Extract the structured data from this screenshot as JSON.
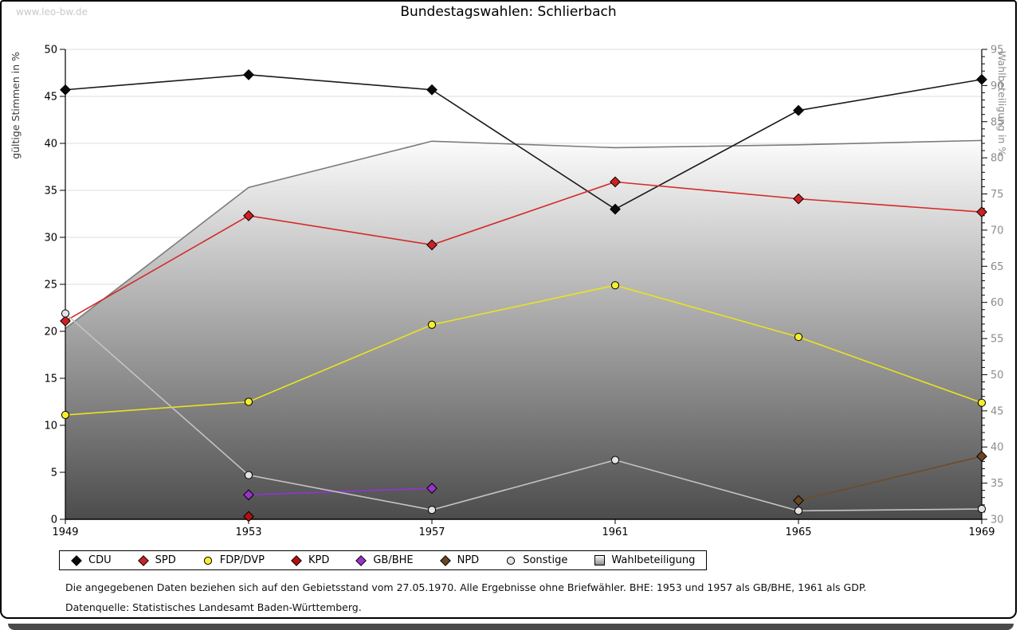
{
  "watermark": "www.leo-bw.de",
  "title": "Bundestagswahlen: Schlierbach",
  "footnote1": "Die angegebenen Daten beziehen sich auf den Gebietsstand vom 27.05.1970. Alle Ergebnisse ohne Briefwähler. BHE: 1953 und 1957 als GB/BHE, 1961 als GDP.",
  "footnote2": "Datenquelle: Statistisches Landesamt Baden-Württemberg.",
  "chart_data": {
    "type": "line",
    "title": "Bundestagswahlen: Schlierbach",
    "x": [
      1949,
      1953,
      1957,
      1961,
      1965,
      1969
    ],
    "left_axis": {
      "label": "gültige Stimmen in %",
      "min": 0,
      "max": 50,
      "tick_step": 5
    },
    "right_axis": {
      "label": "Wahlbeteiligung in %",
      "min": 30,
      "max": 95,
      "tick_step": 5,
      "minor_step": 1
    },
    "grid": true,
    "legend_position": "bottom",
    "series": [
      {
        "name": "CDU",
        "axis": "left",
        "marker": "diamond",
        "line_color": "#1a1a1a",
        "marker_color": "#0a0a0a",
        "values": [
          45.7,
          47.3,
          45.7,
          33.0,
          43.5,
          46.8
        ]
      },
      {
        "name": "SPD",
        "axis": "left",
        "marker": "diamond",
        "line_color": "#d42a2a",
        "marker_color": "#cc2222",
        "values": [
          21.1,
          32.3,
          29.2,
          35.9,
          34.1,
          32.7
        ]
      },
      {
        "name": "FDP/DVP",
        "axis": "left",
        "marker": "circle",
        "line_color": "#e8e41f",
        "marker_color": "#f4ee2e",
        "values": [
          11.1,
          12.5,
          20.7,
          24.9,
          19.4,
          12.4
        ]
      },
      {
        "name": "KPD",
        "axis": "left",
        "marker": "diamond",
        "line_color": "#b40f0f",
        "marker_color": "#b40f0f",
        "values": [
          null,
          0.3,
          null,
          null,
          null,
          null
        ]
      },
      {
        "name": "GB/BHE",
        "axis": "left",
        "marker": "diamond",
        "line_color": "#9333d6",
        "marker_color": "#9933cc",
        "values": [
          null,
          2.6,
          3.3,
          null,
          null,
          null
        ]
      },
      {
        "name": "NPD",
        "axis": "left",
        "marker": "diamond",
        "line_color": "#6f4b2a",
        "marker_color": "#6b4423",
        "values": [
          null,
          null,
          null,
          null,
          2.0,
          6.7
        ]
      },
      {
        "name": "Sonstige",
        "axis": "left",
        "marker": "circle",
        "line_color": "#c4c4c4",
        "marker_color": "#e3e3e3",
        "values": [
          21.9,
          4.7,
          1.0,
          6.3,
          0.9,
          1.1
        ]
      }
    ],
    "area_series": {
      "name": "Wahlbeteiligung",
      "axis": "right",
      "marker": "square",
      "edge_color": "#7b7b7b",
      "fill_top": "#fcfcfc",
      "fill_bottom": "#4c4c4c",
      "values": [
        56.4,
        75.9,
        82.3,
        81.4,
        81.8,
        82.4
      ]
    }
  }
}
